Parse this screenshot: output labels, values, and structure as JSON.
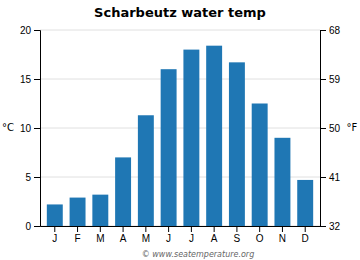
{
  "chart_data": {
    "type": "bar",
    "title": "Scharbeutz water temp",
    "categories": [
      "J",
      "F",
      "M",
      "A",
      "M",
      "J",
      "J",
      "A",
      "S",
      "O",
      "N",
      "D"
    ],
    "values": [
      2.2,
      2.9,
      3.2,
      7.0,
      11.3,
      16.0,
      18.0,
      18.4,
      16.7,
      12.5,
      9.0,
      4.7
    ],
    "ylim": [
      0,
      20
    ],
    "yticks": [
      0,
      5,
      10,
      15,
      20
    ],
    "ylabel": "°C",
    "y2lim": [
      32,
      68
    ],
    "y2ticks": [
      32,
      41,
      50,
      59,
      68
    ],
    "y2label": "°F",
    "grid": true,
    "annotations": [
      "© www.seatemperature.org"
    ]
  }
}
